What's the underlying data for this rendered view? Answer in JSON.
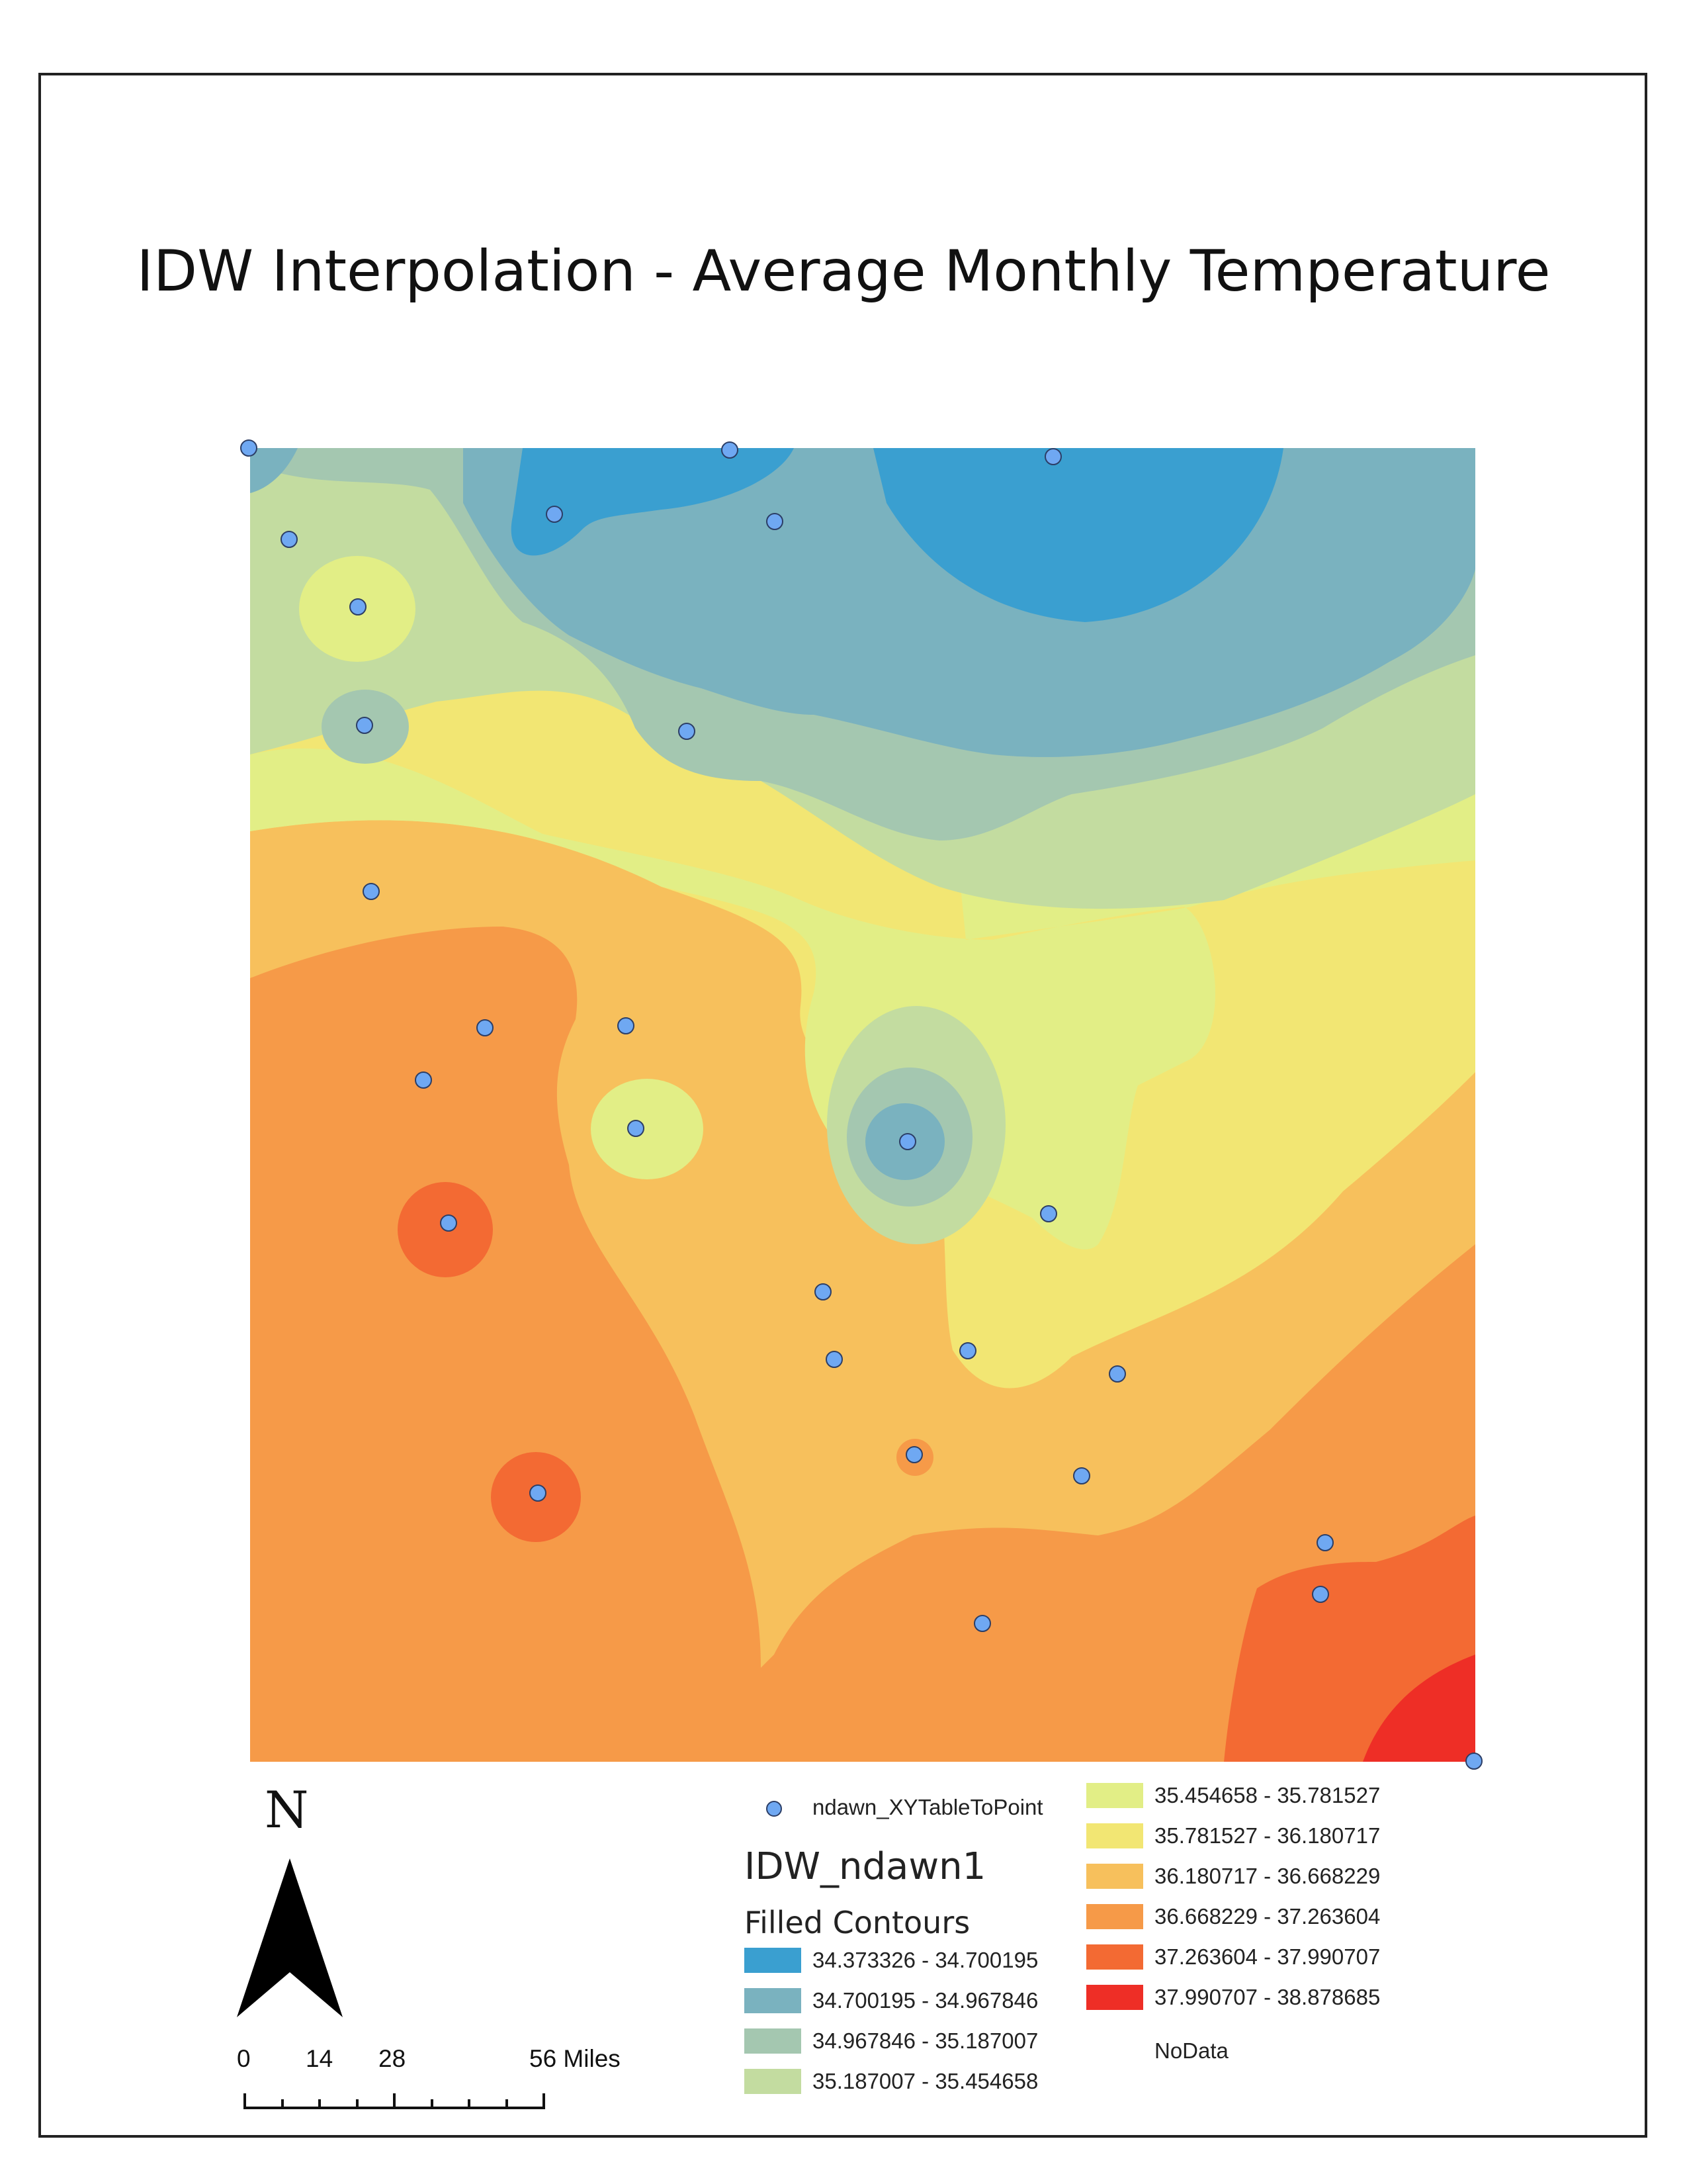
{
  "map_title": "IDW Interpolation - Average Monthly Temperature",
  "colors": {
    "c1": "#3a9fd0",
    "c2": "#7ab2bf",
    "c3": "#a4c7b0",
    "c4": "#c3dca0",
    "c5": "#e2ee86",
    "c6": "#f2e673",
    "c7": "#f7c05c",
    "c8": "#f69a48",
    "c9": "#f36a33",
    "c10": "#ee2e26",
    "point_fill": "#6fa8f2",
    "point_stroke": "#2c3e66"
  },
  "legend": {
    "points_label": "ndawn_XYTableToPoint",
    "layer_title": "IDW_ndawn1",
    "layer_subtitle": "Filled Contours",
    "classes": [
      {
        "label": "34.373326 - 34.700195",
        "color": "#3a9fd0"
      },
      {
        "label": "34.700195 - 34.967846",
        "color": "#7ab2bf"
      },
      {
        "label": "34.967846 - 35.187007",
        "color": "#a4c7b0"
      },
      {
        "label": "35.187007 - 35.454658",
        "color": "#c3dca0"
      },
      {
        "label": "35.454658 - 35.781527",
        "color": "#e2ee86"
      },
      {
        "label": "35.781527 - 36.180717",
        "color": "#f2e673"
      },
      {
        "label": "36.180717 - 36.668229",
        "color": "#f7c05c"
      },
      {
        "label": "36.668229 - 37.263604",
        "color": "#f69a48"
      },
      {
        "label": "37.263604 - 37.990707",
        "color": "#f36a33"
      },
      {
        "label": "37.990707 - 38.878685",
        "color": "#ee2e26"
      }
    ],
    "nodata_label": "NoData"
  },
  "north_arrow": {
    "label": "N"
  },
  "scale_bar": {
    "labels": [
      "0",
      "14",
      "28",
      "56 Miles"
    ]
  }
}
